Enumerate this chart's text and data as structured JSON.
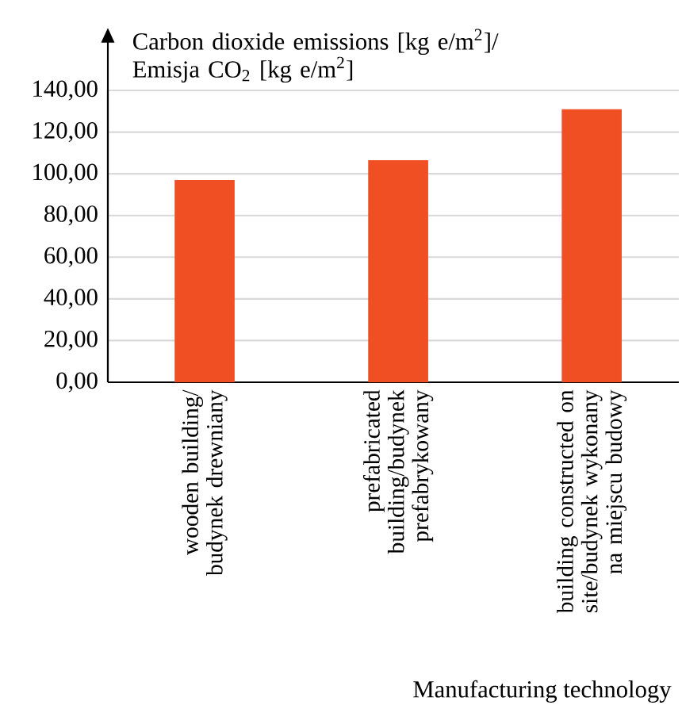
{
  "chart_data": {
    "type": "bar",
    "ylabel": "Carbon dioxide emissions [kg e/m$^{2}$]/ Emisja CO$_{2}$ [kg e/m$^{2}$]",
    "xlabel": "Manufacturing technology",
    "categories": [
      "wooden building/ budynek drewniany",
      "prefabricated building/budynek prefabrykowany",
      "building constructed on site/budynek wykonany na miejscu budowy"
    ],
    "values": [
      97,
      106.5,
      131
    ],
    "color": "#f04e23",
    "ylim": [
      0,
      140
    ],
    "yticks": [
      {
        "value": 0,
        "label": "0,00"
      },
      {
        "value": 20,
        "label": "20,00"
      },
      {
        "value": 40,
        "label": "40,00"
      },
      {
        "value": 60,
        "label": "60,00"
      },
      {
        "value": 80,
        "label": "80,00"
      },
      {
        "value": 100,
        "label": "100,00"
      },
      {
        "value": 120,
        "label": "120,00"
      },
      {
        "value": 140,
        "label": "140,00"
      }
    ],
    "grid": "y"
  }
}
